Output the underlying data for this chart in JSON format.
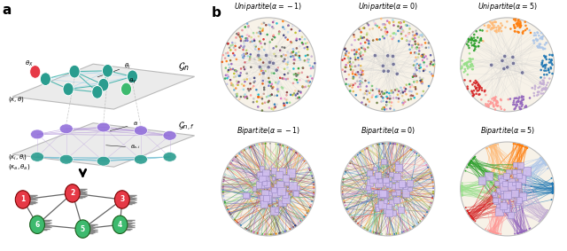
{
  "panel_a_label": "a",
  "panel_b_label": "b",
  "subplot_titles_latex": [
    "$\\mathit{Unipartite}(\\alpha = -1)$",
    "$\\mathit{Unipartite}(\\alpha = 0)$",
    "$\\mathit{Unipartite}(\\alpha = 5)$",
    "$\\mathit{Bipartite}(\\alpha = -1)$",
    "$\\mathit{Bipartite}(\\alpha = 0)$",
    "$\\mathit{Bipartite}(\\alpha = 5)$"
  ],
  "node_color_green": "#3dba6e",
  "node_color_red": "#e63946",
  "background_color": "#ffffff",
  "teal_node": "#2a9d8f",
  "purple_node": "#9370db"
}
